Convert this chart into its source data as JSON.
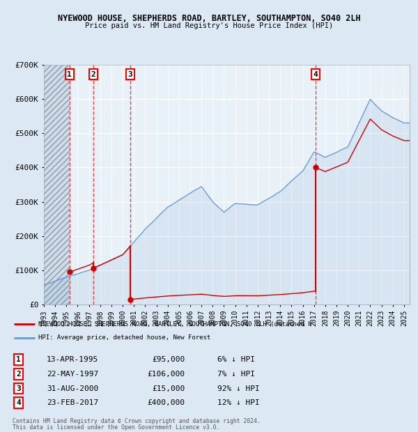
{
  "title1": "NYEWOOD HOUSE, SHEPHERDS ROAD, BARTLEY, SOUTHAMPTON, SO40 2LH",
  "title2": "Price paid vs. HM Land Registry's House Price Index (HPI)",
  "bg_color": "#dde8f5",
  "plot_bg": "#e8f0f8",
  "grid_color": "#ffffff",
  "transactions": [
    {
      "num": 1,
      "date_label": "13-APR-1995",
      "year": 1995.28,
      "price": 95000,
      "pct": "6%",
      "dir": "↓"
    },
    {
      "num": 2,
      "date_label": "22-MAY-1997",
      "year": 1997.38,
      "price": 106000,
      "pct": "7%",
      "dir": "↓"
    },
    {
      "num": 3,
      "date_label": "31-AUG-2000",
      "year": 2000.67,
      "price": 15000,
      "pct": "92%",
      "dir": "↓"
    },
    {
      "num": 4,
      "date_label": "23-FEB-2017",
      "year": 2017.14,
      "price": 400000,
      "pct": "12%",
      "dir": "↓"
    }
  ],
  "hpi_line_color": "#6699cc",
  "price_line_color": "#cc0000",
  "marker_color": "#cc0000",
  "dashed_color": "#cc3333",
  "xmin": 1993.0,
  "xmax": 2025.5,
  "ymin": 0,
  "ymax": 700000,
  "yticks": [
    0,
    100000,
    200000,
    300000,
    400000,
    500000,
    600000,
    700000
  ],
  "ytick_labels": [
    "£0",
    "£100K",
    "£200K",
    "£300K",
    "£400K",
    "£500K",
    "£600K",
    "£700K"
  ],
  "xticks": [
    1993,
    1994,
    1995,
    1996,
    1997,
    1998,
    1999,
    2000,
    2001,
    2002,
    2003,
    2004,
    2005,
    2006,
    2007,
    2008,
    2009,
    2010,
    2011,
    2012,
    2013,
    2014,
    2015,
    2016,
    2017,
    2018,
    2019,
    2020,
    2021,
    2022,
    2023,
    2024,
    2025
  ],
  "hpi_anchors_years": [
    1993,
    1995,
    1997,
    2000,
    2002,
    2004,
    2007,
    2008,
    2009,
    2010,
    2012,
    2014,
    2016,
    2017,
    2018,
    2019,
    2020,
    2021,
    2022,
    2023,
    2024,
    2025
  ],
  "hpi_anchors_prices": [
    58000,
    80000,
    100000,
    145000,
    220000,
    285000,
    345000,
    300000,
    270000,
    295000,
    290000,
    330000,
    390000,
    445000,
    430000,
    445000,
    460000,
    530000,
    600000,
    565000,
    545000,
    530000
  ],
  "legend_label1": "NYEWOOD HOUSE, SHEPHERDS ROAD, BARTLEY, SOUTHAMPTON, SO40 2LH (detached h",
  "legend_label2": "HPI: Average price, detached house, New Forest",
  "footer1": "Contains HM Land Registry data © Crown copyright and database right 2024.",
  "footer2": "This data is licensed under the Open Government Licence v3.0."
}
